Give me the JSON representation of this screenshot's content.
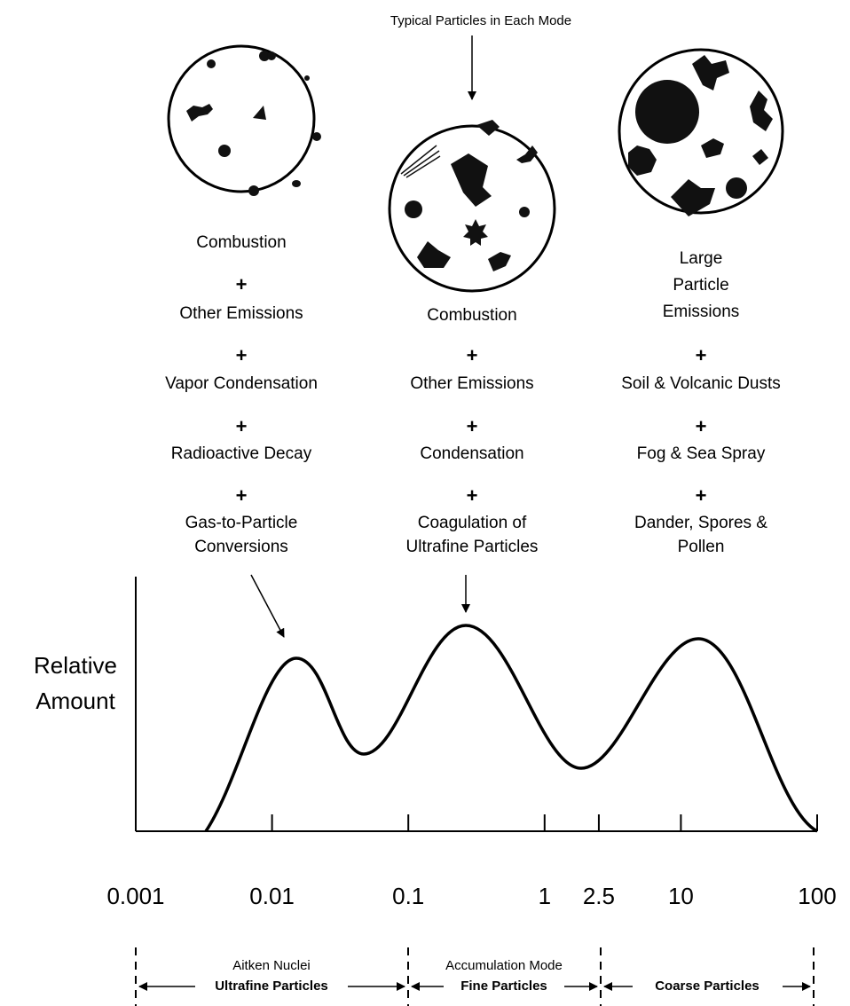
{
  "title": "Typical Particles in Each Mode",
  "columns": [
    {
      "lines": [
        "Combustion",
        "+",
        "Other Emissions",
        "+",
        "Vapor Condensation",
        "+",
        "Radioactive Decay",
        "+",
        "Gas-to-Particle",
        "Conversions"
      ]
    },
    {
      "lines": [
        "Combustion",
        "+",
        "Other Emissions",
        "+",
        "Condensation",
        "+",
        "Coagulation of",
        "Ultrafine Particles"
      ]
    },
    {
      "lines": [
        "Large",
        "Particle",
        "Emissions",
        "+",
        "Soil & Volcanic Dusts",
        "+",
        "Fog & Sea Spray",
        "+",
        "Dander, Spores &",
        "Pollen"
      ]
    }
  ],
  "y_axis_label": [
    "Relative",
    "Amount"
  ],
  "x_axis": {
    "log_scale": true,
    "xlim": [
      0.001,
      100
    ],
    "xticks": [
      0.001,
      0.01,
      0.1,
      1,
      2.5,
      10,
      100
    ]
  },
  "modes": [
    "Aitken Nuclei",
    "Accumulation Mode"
  ],
  "size_classes": [
    "Ultrafine Particles",
    "Fine Particles",
    "Coarse Particles"
  ]
}
